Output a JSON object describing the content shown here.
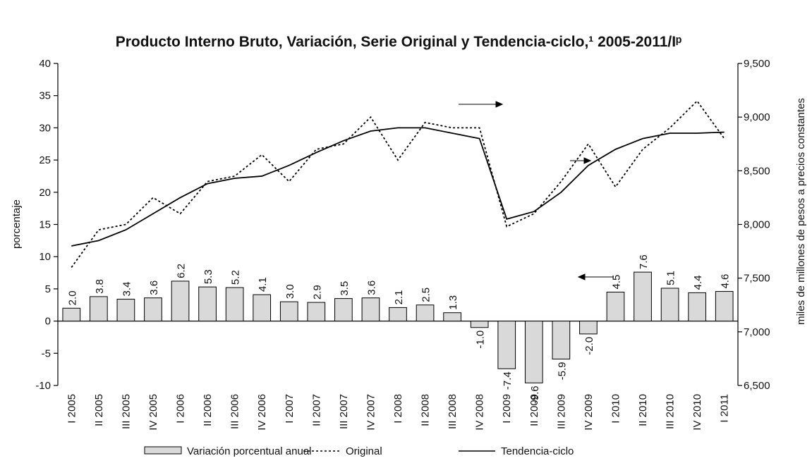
{
  "chart_data": {
    "type": "bar",
    "title": "Producto Interno Bruto, Variación, Serie Original y Tendencia-ciclo,¹ 2005-2011/Iᵖ",
    "ylabel": "porcentaje",
    "y2label": "miles de millones de pesos a precios constantes",
    "categories": [
      "I 2005",
      "II 2005",
      "III 2005",
      "IV 2005",
      "I 2006",
      "II 2006",
      "III 2006",
      "IV 2006",
      "I 2007",
      "II 2007",
      "III 2007",
      "IV 2007",
      "I 2008",
      "II 2008",
      "III 2008",
      "IV 2008",
      "I 2009",
      "II 2009",
      "III 2009",
      "IV 2009",
      "I 2010",
      "II 2010",
      "III 2010",
      "IV 2010",
      "I 2011"
    ],
    "series": [
      {
        "name": "Variación porcentual anual",
        "type": "bar",
        "color": "#d9d9d9",
        "values": [
          2.0,
          3.8,
          3.4,
          3.6,
          6.2,
          5.3,
          5.2,
          4.1,
          3.0,
          2.9,
          3.5,
          3.6,
          2.1,
          2.5,
          1.3,
          -1.0,
          -7.4,
          -9.6,
          -5.9,
          -2.0,
          4.5,
          7.6,
          5.1,
          4.4,
          4.6
        ],
        "value_labels": [
          "2.0",
          "3.8",
          "3.4",
          "3.6",
          "6.2",
          "5.3",
          "5.2",
          "4.1",
          "3.0",
          "2.9",
          "3.5",
          "3.6",
          "2.1",
          "2.5",
          "1.3",
          "-1.0",
          "-7.4",
          "-9.6",
          "-5.9",
          "-2.0",
          "4.5",
          "7.6",
          "5.1",
          "4.4",
          "4.6"
        ]
      },
      {
        "name": "Original",
        "type": "line",
        "axis": "y2",
        "color": "#000000",
        "dash": true,
        "values": [
          7600,
          7950,
          8000,
          8250,
          8100,
          8400,
          8450,
          8650,
          8400,
          8700,
          8750,
          9000,
          8600,
          8950,
          8900,
          8900,
          7980,
          8100,
          8400,
          8750,
          8350,
          8700,
          8900,
          9150,
          8800
        ]
      },
      {
        "name": "Tendencia-ciclo",
        "type": "line",
        "axis": "y2",
        "color": "#000000",
        "dash": false,
        "values": [
          7800,
          7850,
          7950,
          8100,
          8250,
          8380,
          8430,
          8450,
          8550,
          8670,
          8780,
          8870,
          8900,
          8900,
          8850,
          8800,
          8050,
          8120,
          8300,
          8550,
          8700,
          8800,
          8850,
          8850,
          8860
        ]
      }
    ],
    "ylim": [
      -10,
      40
    ],
    "yticks": [
      -10,
      -5,
      0,
      5,
      10,
      15,
      20,
      25,
      30,
      35,
      40
    ],
    "y2lim": [
      6500,
      9500
    ],
    "y2ticks": [
      {
        "value": 6500,
        "label": "6,500"
      },
      {
        "value": 7000,
        "label": "7,000"
      },
      {
        "value": 7500,
        "label": "7,500"
      },
      {
        "value": 8000,
        "label": "8,000"
      },
      {
        "value": 8500,
        "label": "8,500"
      },
      {
        "value": 9000,
        "label": "9,000"
      },
      {
        "value": 9500,
        "label": "9,500"
      }
    ]
  }
}
